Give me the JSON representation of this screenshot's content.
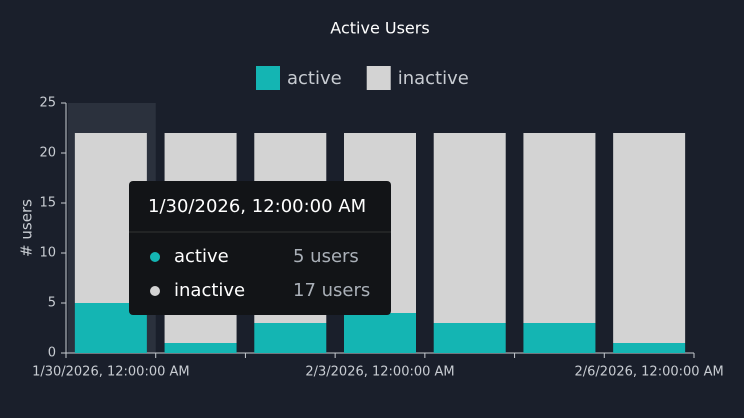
{
  "chart_data": {
    "type": "stacked_bar",
    "title": "Active Users",
    "y_label": "# users",
    "categories": [
      "1/30/2026, 12:00:00 AM",
      null,
      null,
      "2/3/2026, 12:00:00 AM",
      null,
      null,
      "2/6/2026, 12:00:00 AM"
    ],
    "series": [
      {
        "name": "active",
        "color": "#14b5b3",
        "values": [
          5,
          1,
          3,
          4,
          3,
          3,
          1
        ]
      },
      {
        "name": "inactive",
        "color": "#d3d3d3",
        "values": [
          17,
          21,
          19,
          18,
          19,
          19,
          21
        ]
      }
    ],
    "ylim": [
      0,
      25
    ],
    "yticks": [
      0,
      5,
      10,
      15,
      20,
      25
    ],
    "tooltip": {
      "value_labels": [
        "5 users",
        "17 users"
      ]
    }
  }
}
